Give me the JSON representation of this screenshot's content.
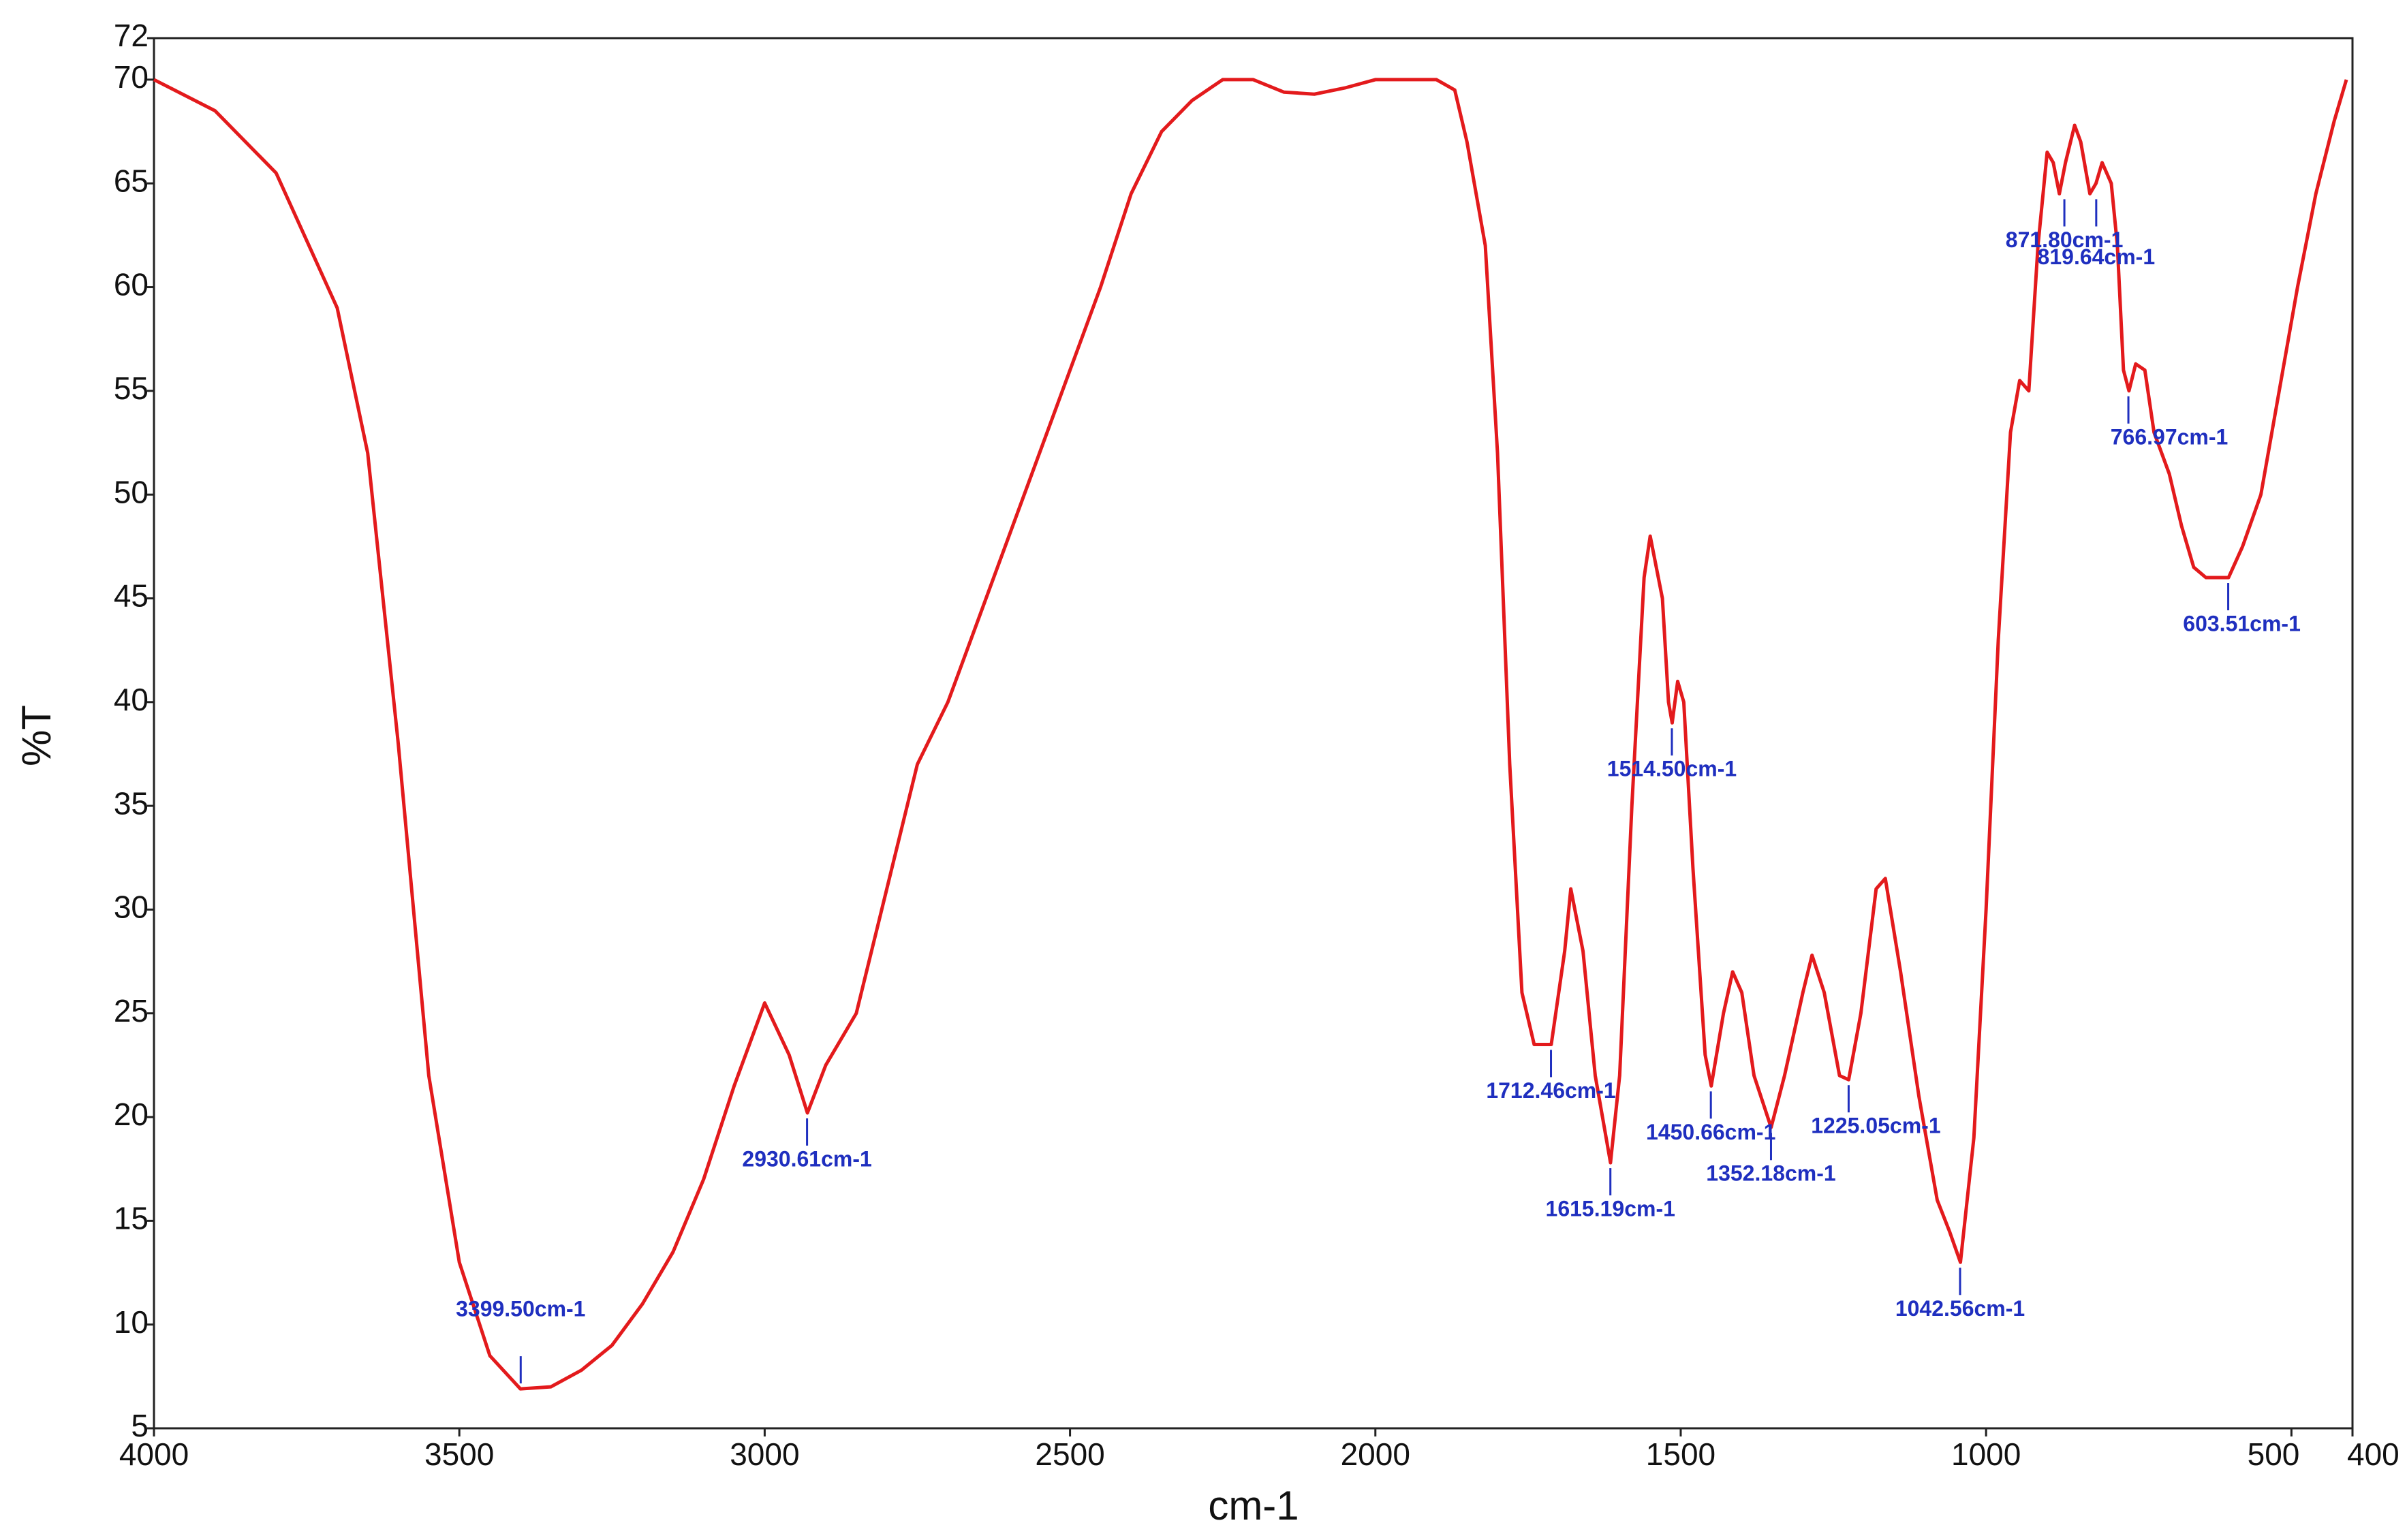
{
  "chart_data": {
    "type": "line",
    "xlabel": "cm-1",
    "ylabel": "%T",
    "xlim": [
      4000,
      400
    ],
    "ylim": [
      5,
      72
    ],
    "xticks": [
      4000,
      3500,
      3000,
      2500,
      2000,
      1500,
      1000,
      500,
      400
    ],
    "yticks": [
      5,
      10,
      15,
      20,
      25,
      30,
      35,
      40,
      45,
      50,
      55,
      60,
      65,
      70,
      72
    ],
    "color": "#e31a1c",
    "x": [
      4000,
      3900,
      3800,
      3700,
      3650,
      3600,
      3550,
      3500,
      3450,
      3400,
      3350,
      3300,
      3250,
      3200,
      3150,
      3100,
      3050,
      3000,
      2960,
      2930,
      2900,
      2850,
      2800,
      2750,
      2700,
      2650,
      2600,
      2550,
      2500,
      2450,
      2400,
      2350,
      2300,
      2250,
      2200,
      2150,
      2100,
      2050,
      2000,
      1950,
      1900,
      1870,
      1850,
      1820,
      1800,
      1780,
      1760,
      1740,
      1712,
      1690,
      1680,
      1660,
      1640,
      1615,
      1600,
      1580,
      1560,
      1550,
      1530,
      1520,
      1514,
      1505,
      1495,
      1480,
      1460,
      1450,
      1430,
      1415,
      1400,
      1380,
      1352,
      1330,
      1300,
      1285,
      1265,
      1240,
      1225,
      1205,
      1180,
      1165,
      1140,
      1110,
      1080,
      1060,
      1042,
      1020,
      1000,
      980,
      960,
      945,
      930,
      915,
      900,
      890,
      880,
      870,
      855,
      845,
      830,
      820,
      810,
      795,
      785,
      775,
      766,
      755,
      740,
      725,
      700,
      680,
      660,
      640,
      620,
      603,
      580,
      550,
      520,
      490,
      460,
      430,
      410
    ],
    "values": [
      70,
      68.5,
      65.5,
      59,
      52,
      38,
      22,
      13,
      8.5,
      6.9,
      7,
      7.8,
      9,
      11,
      13.5,
      17,
      21.5,
      25.5,
      23,
      20.2,
      22.5,
      25,
      31,
      37,
      40,
      44,
      48,
      52,
      56,
      60,
      64.5,
      67.5,
      69,
      70,
      70,
      69.4,
      69.3,
      69.6,
      70,
      70,
      70,
      69.5,
      67,
      62,
      52,
      37,
      26,
      23.5,
      23.5,
      28,
      31,
      28,
      22,
      17.8,
      22,
      35,
      46,
      48,
      45,
      40,
      39,
      41,
      40,
      32,
      23,
      21.5,
      25,
      27,
      26,
      22,
      19.5,
      22,
      26,
      27.8,
      26,
      22,
      21.8,
      25,
      31,
      31.5,
      27,
      21,
      16,
      14.5,
      13,
      19,
      30,
      43,
      53,
      55.5,
      55,
      62,
      66.5,
      66,
      64.5,
      66,
      67.8,
      67,
      64.5,
      65,
      66,
      65,
      62,
      56,
      55,
      56.3,
      56,
      53,
      51,
      48.5,
      46.5,
      46,
      46,
      46,
      47.5,
      50,
      55,
      60,
      64.5,
      68,
      70
    ],
    "annotations": [
      {
        "label": "3399.50cm-1",
        "x": 3399.5,
        "y": 6.9
      },
      {
        "label": "2930.61cm-1",
        "x": 2930.61,
        "y": 20.2
      },
      {
        "label": "1712.46cm-1",
        "x": 1712.46,
        "y": 23.5
      },
      {
        "label": "1615.19cm-1",
        "x": 1615.19,
        "y": 17.8
      },
      {
        "label": "1514.50cm-1",
        "x": 1514.5,
        "y": 39
      },
      {
        "label": "1450.66cm-1",
        "x": 1450.66,
        "y": 21.5
      },
      {
        "label": "1352.18cm-1",
        "x": 1352.18,
        "y": 19.5
      },
      {
        "label": "1225.05cm-1",
        "x": 1225.05,
        "y": 21.8
      },
      {
        "label": "1042.56cm-1",
        "x": 1042.56,
        "y": 13
      },
      {
        "label": "871.80cm-1",
        "x": 871.8,
        "y": 64.5
      },
      {
        "label": "819.64cm-1",
        "x": 819.64,
        "y": 64.5
      },
      {
        "label": "766.97cm-1",
        "x": 766.97,
        "y": 55
      },
      {
        "label": "603.51cm-1",
        "x": 603.51,
        "y": 46
      }
    ]
  }
}
